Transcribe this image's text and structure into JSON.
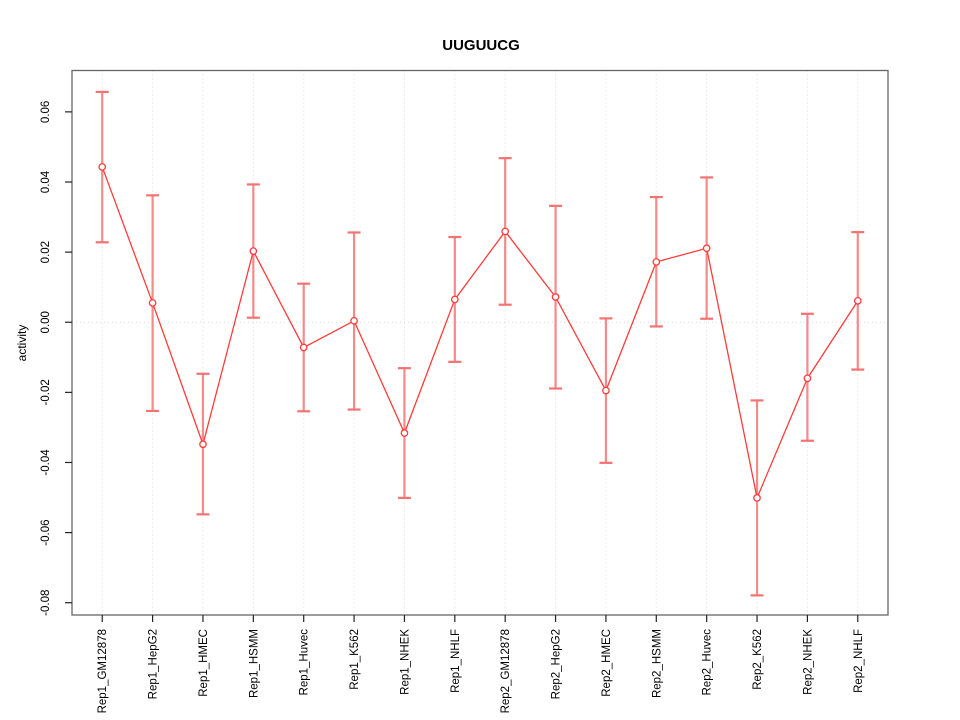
{
  "chart_data": {
    "type": "line",
    "title": "UUGUUCG",
    "xlabel": "",
    "ylabel": "activity",
    "legend": "none",
    "grid": "vertical-dotted-per-category-plus-zero-line",
    "point_style": "open-circle",
    "error_bars": true,
    "categories": [
      "Rep1_GM12878",
      "Rep1_HepG2",
      "Rep1_HMEC",
      "Rep1_HSMM",
      "Rep1_Huvec",
      "Rep1_K562",
      "Rep1_NHEK",
      "Rep1_NHLF",
      "Rep2_GM12878",
      "Rep2_HepG2",
      "Rep2_HMEC",
      "Rep2_HSMM",
      "Rep2_Huvec",
      "Rep2_K562",
      "Rep2_NHEK",
      "Rep2_NHLF"
    ],
    "series": [
      {
        "name": "activity",
        "values": [
          0.0443,
          0.0055,
          -0.0348,
          0.0203,
          -0.0072,
          0.0004,
          -0.0316,
          0.0065,
          0.0259,
          0.0072,
          -0.0195,
          0.0172,
          0.0211,
          -0.0501,
          -0.016,
          0.0061
        ],
        "ci_lower": [
          0.0228,
          -0.0253,
          -0.0548,
          0.0013,
          -0.0254,
          -0.0249,
          -0.0501,
          -0.0113,
          0.005,
          -0.0189,
          -0.0401,
          -0.0012,
          0.001,
          -0.0779,
          -0.0338,
          -0.0135
        ],
        "ci_upper": [
          0.0657,
          0.0362,
          -0.0147,
          0.0393,
          0.011,
          0.0256,
          -0.0131,
          0.0243,
          0.0468,
          0.0332,
          0.0011,
          0.0357,
          0.0413,
          -0.0223,
          0.0024,
          0.0257
        ]
      }
    ],
    "y_ticks": [
      0.06,
      0.04,
      0.02,
      0.0,
      -0.02,
      -0.04,
      -0.06,
      -0.08
    ],
    "ylim": [
      -0.0835,
      0.0718
    ],
    "colors": {
      "series_line": "#ff3b3b",
      "point_stroke": "#ff3b3b",
      "point_fill": "#ffffff",
      "error_bar": "#f58a8a",
      "error_cap": "#f47272",
      "grid": "#dcdcdc",
      "zero_line": "#d8d8d8",
      "box": "#666666",
      "tick": "#222222"
    }
  }
}
